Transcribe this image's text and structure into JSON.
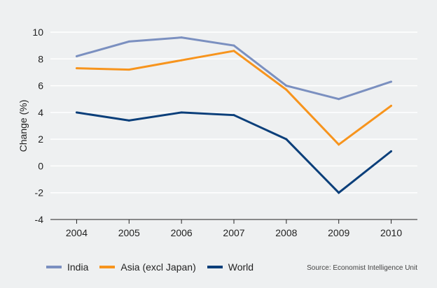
{
  "chart_data": {
    "type": "line",
    "x": [
      "2004",
      "2005",
      "2006",
      "2007",
      "2008",
      "2009",
      "2010"
    ],
    "series": [
      {
        "name": "India",
        "color": "#7b90c0",
        "values": [
          8.2,
          9.3,
          9.6,
          9.0,
          6.0,
          5.0,
          6.3
        ]
      },
      {
        "name": "Asia (excl Japan)",
        "color": "#f7941d",
        "values": [
          7.3,
          7.2,
          7.9,
          8.6,
          5.7,
          1.6,
          4.5
        ]
      },
      {
        "name": "World",
        "color": "#0b3f7a",
        "values": [
          4.0,
          3.4,
          4.0,
          3.8,
          2.0,
          -2.0,
          1.1
        ]
      }
    ],
    "ylabel": "Change (%)",
    "xlabel": "",
    "ylim": [
      -4,
      10
    ],
    "yticks": [
      "10",
      "8",
      "6",
      "4",
      "2",
      "0",
      "-2",
      "-4"
    ],
    "grid": true,
    "legend_position": "bottom-left",
    "source": "Source: Economist Intelligence Unit"
  }
}
